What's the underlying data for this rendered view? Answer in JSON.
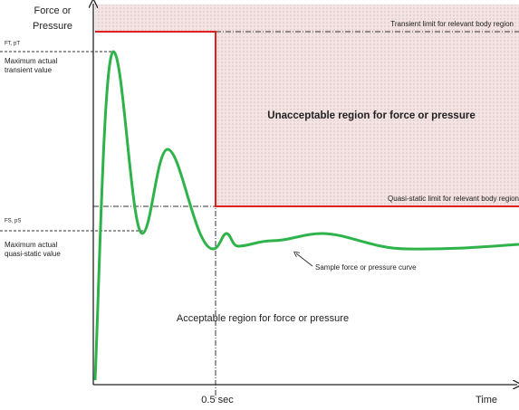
{
  "diagram": {
    "y_axis_label": [
      "Force or",
      "Pressure"
    ],
    "x_axis_label": "Time",
    "time_marker": "0.5 sec",
    "transient_limit": "Transient limit for relevant body region",
    "quasi_static_limit": "Quasi-static limit for relevant body region",
    "transient_symbol": "FT, pT",
    "quasi_static_symbol": "FS, pS",
    "max_transient": [
      "Maximum actual",
      "transient value"
    ],
    "max_quasi_static": [
      "Maximum actual",
      "quasi-static value"
    ],
    "unacceptable_region": "Unacceptable region for force or pressure",
    "acceptable_region": "Acceptable region for force or pressure",
    "curve_label": "Sample force or pressure curve"
  }
}
